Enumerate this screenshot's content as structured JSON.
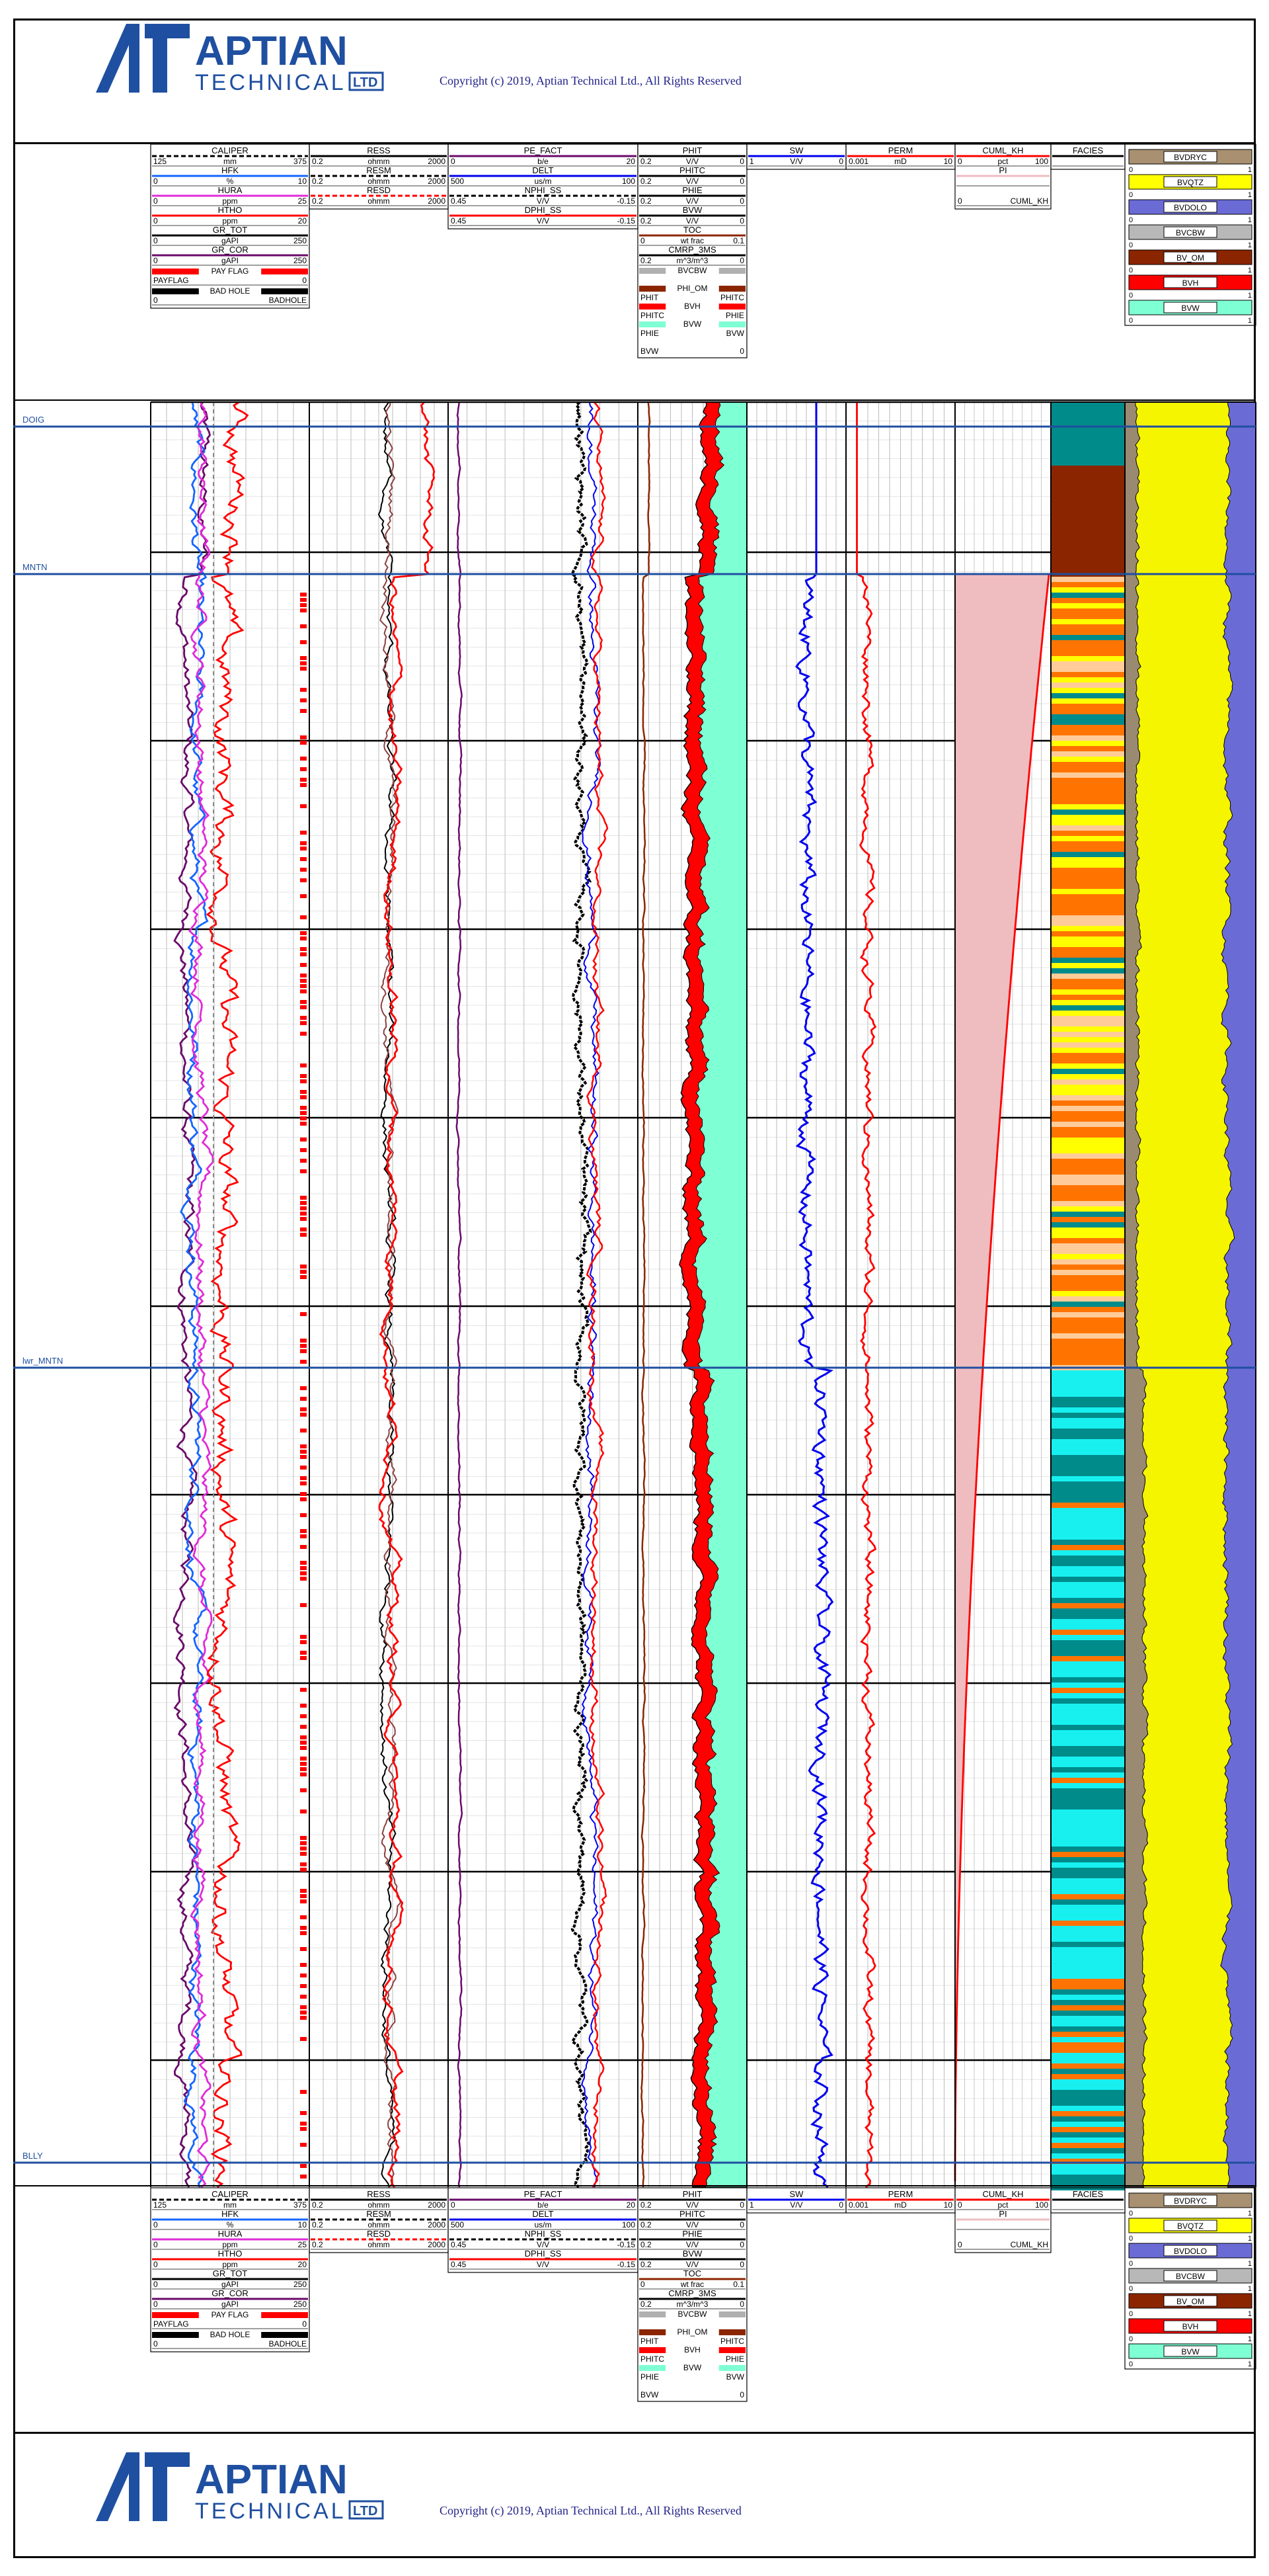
{
  "company": {
    "name_top": "APTIAN",
    "name_bottom": "TECHNICAL",
    "name_suffix": "LTD",
    "copyright": "Copyright (c) 2019, Aptian Technical Ltd., All Rights Reserved"
  },
  "colors": {
    "accent": "#1f4fa0",
    "gr": "#6a0a6a",
    "hfk": "#1565ff",
    "hura": "#e02bd8",
    "curve_red": "#ff0000",
    "curve_blue": "#0000ee",
    "curve_black": "#000000",
    "curve_brown": "#8b2500",
    "pink_fill": "#efbdc0",
    "teal": "#008b8b",
    "cyan": "#18f0f0",
    "orange": "#ff7400",
    "yellow": "#ffff00",
    "peach": "#ffcc99",
    "dolo": "#6b6bd6",
    "qtz": "#f5f500"
  },
  "chart_data": {
    "type": "well-log",
    "tops": [
      {
        "name": "DOIG",
        "color": "#1f4fa0"
      },
      {
        "name": "MNTN",
        "color": "#1f4fa0"
      },
      {
        "name": "lwr_MNTN",
        "color": "#1f4fa0"
      },
      {
        "name": "BLLY",
        "color": "#1f4fa0"
      }
    ],
    "tracks": [
      {
        "id": "t1",
        "headers": [
          {
            "name": "CALIPER",
            "unit": "mm",
            "min": "125",
            "max": "375",
            "color": "#000000",
            "dash": true
          },
          {
            "name": "HFK",
            "unit": "%",
            "min": "0",
            "max": "10",
            "color": "#1565ff"
          },
          {
            "name": "HURA",
            "unit": "ppm",
            "min": "0",
            "max": "25",
            "color": "#e02bd8"
          },
          {
            "name": "HTHO",
            "unit": "ppm",
            "min": "0",
            "max": "20",
            "color": "#ff0000"
          },
          {
            "name": "GR_TOT",
            "unit": "gAPI",
            "min": "0",
            "max": "250",
            "color": "#000000"
          },
          {
            "name": "GR_COR",
            "unit": "gAPI",
            "min": "0",
            "max": "250",
            "color": "#6a0a6a"
          }
        ],
        "flags": [
          {
            "name": "PAY FLAG",
            "left": "PAYFLAG",
            "right": "0",
            "color": "#ff0000"
          },
          {
            "name": "BAD HOLE",
            "left": "0",
            "right": "BADHOLE",
            "color": "#000000"
          }
        ]
      },
      {
        "id": "t2",
        "headers": [
          {
            "name": "RESS",
            "unit": "ohmm",
            "min": "0.2",
            "max": "2000",
            "color": "#000000"
          },
          {
            "name": "RESM",
            "unit": "ohmm",
            "min": "0.2",
            "max": "2000",
            "color": "#000000",
            "dash": true
          },
          {
            "name": "RESD",
            "unit": "ohmm",
            "min": "0.2",
            "max": "2000",
            "color": "#ff0000",
            "dash": true
          }
        ]
      },
      {
        "id": "t3",
        "headers": [
          {
            "name": "PE_FACT",
            "unit": "b/e",
            "min": "0",
            "max": "20",
            "color": "#6a0a6a"
          },
          {
            "name": "DELT",
            "unit": "us/m",
            "min": "500",
            "max": "100",
            "color": "#0000ee"
          },
          {
            "name": "NPHI_SS",
            "unit": "V/V",
            "min": "0.45",
            "max": "-0.15",
            "color": "#000000",
            "dash": true
          },
          {
            "name": "DPHI_SS",
            "unit": "V/V",
            "min": "0.45",
            "max": "-0.15",
            "color": "#ff0000"
          }
        ]
      },
      {
        "id": "t4",
        "headers": [
          {
            "name": "PHIT",
            "unit": "V/V",
            "min": "0.2",
            "max": "0",
            "color": "#000000"
          },
          {
            "name": "PHITC",
            "unit": "V/V",
            "min": "0.2",
            "max": "0",
            "color": "#000000"
          },
          {
            "name": "PHIE",
            "unit": "V/V",
            "min": "0.2",
            "max": "0",
            "color": "#000000"
          },
          {
            "name": "BVW",
            "unit": "V/V",
            "min": "0.2",
            "max": "0",
            "color": "#000000"
          },
          {
            "name": "TOC",
            "unit": "wt frac",
            "min": "0",
            "max": "0.1",
            "color": "#8b2500"
          },
          {
            "name": "CMRP_3MS",
            "unit": "m^3/m^3",
            "min": "0.2",
            "max": "0",
            "color": "#000000"
          }
        ],
        "fills": [
          {
            "name": "BVCBW",
            "left": "",
            "right": "",
            "color": "#b0b0b0"
          },
          {
            "name": "PHI_OM",
            "left": "PHIT",
            "right": "PHITC",
            "color": "#8b2500"
          },
          {
            "name": "BVH",
            "left": "PHITC",
            "right": "PHIE",
            "color": "#ff0000"
          },
          {
            "name": "BVW",
            "left": "PHIE",
            "right": "BVW",
            "color": "#7fffd4"
          },
          {
            "name": "",
            "left": "BVW",
            "right": "0",
            "color": "#ffffff"
          }
        ]
      },
      {
        "id": "t5",
        "headers": [
          {
            "name": "SW",
            "unit": "V/V",
            "min": "1",
            "max": "0",
            "color": "#0000ee"
          }
        ]
      },
      {
        "id": "t6",
        "headers": [
          {
            "name": "PERM",
            "unit": "mD",
            "min": "0.001",
            "max": "10",
            "color": "#ff0000"
          }
        ]
      },
      {
        "id": "t7",
        "headers": [
          {
            "name": "CUML_KH",
            "unit": "pct",
            "min": "0",
            "max": "100",
            "color": "#ff0000"
          },
          {
            "name": "PI",
            "unit": "",
            "min": "",
            "max": "",
            "color": "#efbdc0"
          },
          {
            "name": "",
            "unit": "",
            "min": "0",
            "max": "CUML_KH",
            "color": "#ffffff"
          }
        ]
      },
      {
        "id": "t8",
        "headers": [
          {
            "name": "FACIES",
            "unit": "",
            "min": "",
            "max": "",
            "color": "#000000"
          }
        ]
      },
      {
        "id": "t9",
        "legend": [
          {
            "name": "BVDRYC",
            "min": "0",
            "max": "1",
            "color": "#a89070"
          },
          {
            "name": "BVQTZ",
            "min": "0",
            "max": "1",
            "color": "#ffff00"
          },
          {
            "name": "BVDOLO",
            "min": "0",
            "max": "1",
            "color": "#6b6bd6"
          },
          {
            "name": "BVCBW",
            "min": "0",
            "max": "1",
            "color": "#b8b8b8"
          },
          {
            "name": "BV_OM",
            "min": "0",
            "max": "1",
            "color": "#8b2500"
          },
          {
            "name": "BVH",
            "min": "0",
            "max": "1",
            "color": "#ff0000"
          },
          {
            "name": "BVW",
            "min": "0",
            "max": "1",
            "color": "#7fffd4"
          }
        ]
      }
    ]
  }
}
